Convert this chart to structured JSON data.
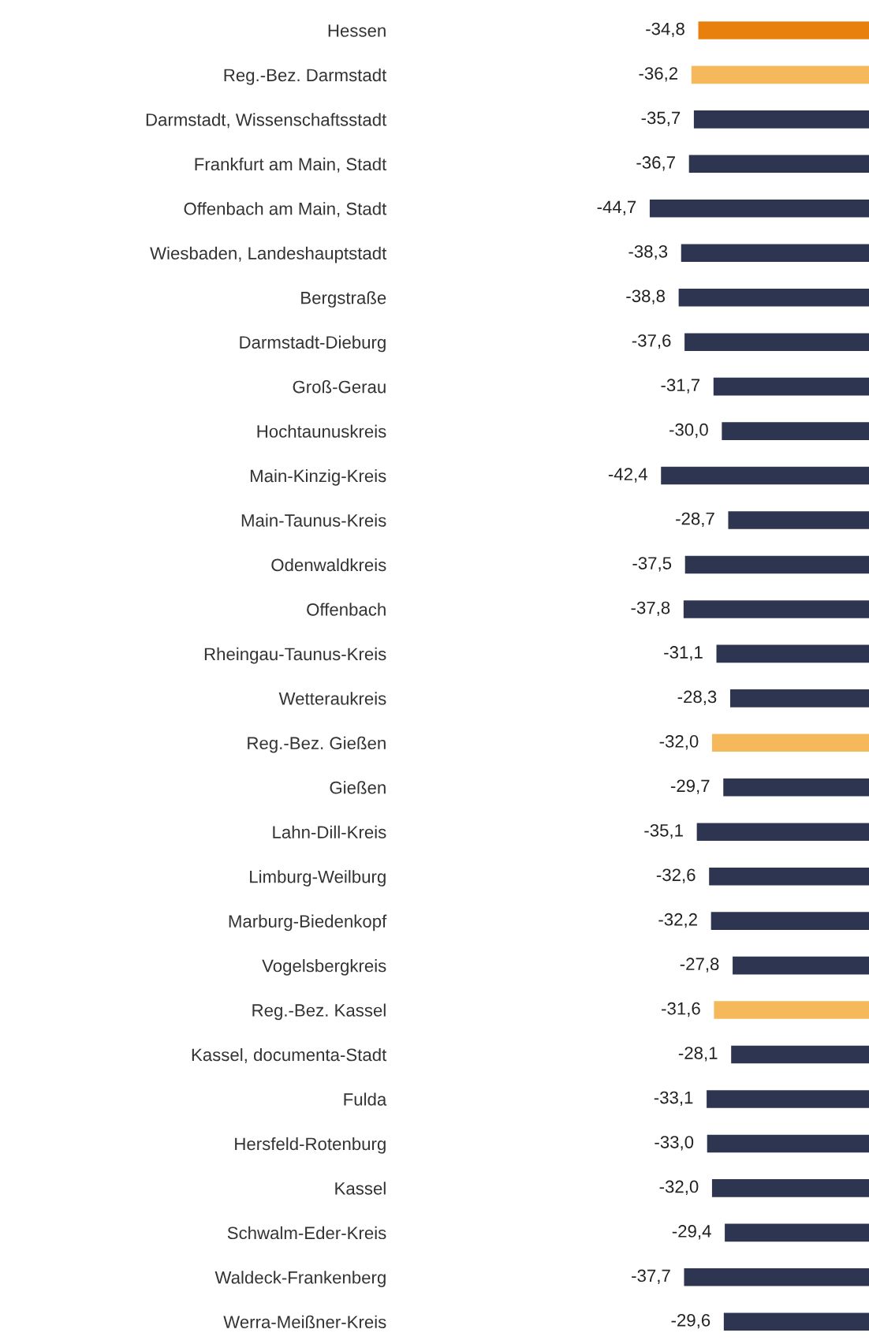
{
  "chart_data": {
    "type": "bar",
    "orientation": "horizontal",
    "value_labels": [
      "-34,8",
      "-36,2",
      "-35,7",
      "-36,7",
      "-44,7",
      "-38,3",
      "-38,8",
      "-37,6",
      "-31,7",
      "-30,0",
      "-42,4",
      "-28,7",
      "-37,5",
      "-37,8",
      "-31,1",
      "-28,3",
      "-32,0",
      "-29,7",
      "-35,1",
      "-32,6",
      "-32,2",
      "-27,8",
      "-31,6",
      "-28,1",
      "-33,1",
      "-33,0",
      "-32,0",
      "-29,4",
      "-37,7",
      "-29,6"
    ],
    "categories": [
      "Hessen",
      "Reg.-Bez. Darmstadt",
      "Darmstadt, Wissenschaftsstadt",
      "Frankfurt am Main, Stadt",
      "Offenbach am Main, Stadt",
      "Wiesbaden, Landeshauptstadt",
      "Bergstraße",
      "Darmstadt-Dieburg",
      "Groß-Gerau",
      "Hochtaunuskreis",
      "Main-Kinzig-Kreis",
      "Main-Taunus-Kreis",
      "Odenwaldkreis",
      "Offenbach",
      "Rheingau-Taunus-Kreis",
      "Wetteraukreis",
      "Reg.-Bez. Gießen",
      "Gießen",
      "Lahn-Dill-Kreis",
      "Limburg-Weilburg",
      "Marburg-Biedenkopf",
      "Vogelsbergkreis",
      "Reg.-Bez. Kassel",
      "Kassel, documenta-Stadt",
      "Fulda",
      "Hersfeld-Rotenburg",
      "Kassel",
      "Schwalm-Eder-Kreis",
      "Waldeck-Frankenberg",
      "Werra-Meißner-Kreis"
    ],
    "values": [
      -34.8,
      -36.2,
      -35.7,
      -36.7,
      -44.7,
      -38.3,
      -38.8,
      -37.6,
      -31.7,
      -30.0,
      -42.4,
      -28.7,
      -37.5,
      -37.8,
      -31.1,
      -28.3,
      -32.0,
      -29.7,
      -35.1,
      -32.6,
      -32.2,
      -27.8,
      -31.6,
      -28.1,
      -33.1,
      -33.0,
      -32.0,
      -29.4,
      -37.7,
      -29.6
    ],
    "colors": [
      "#e8800e",
      "#f5b95c",
      "#2e3550",
      "#2e3550",
      "#2e3550",
      "#2e3550",
      "#2e3550",
      "#2e3550",
      "#2e3550",
      "#2e3550",
      "#2e3550",
      "#2e3550",
      "#2e3550",
      "#2e3550",
      "#2e3550",
      "#2e3550",
      "#f5b95c",
      "#2e3550",
      "#2e3550",
      "#2e3550",
      "#2e3550",
      "#2e3550",
      "#f5b95c",
      "#2e3550",
      "#2e3550",
      "#2e3550",
      "#2e3550",
      "#2e3550",
      "#2e3550",
      "#2e3550"
    ],
    "grid": false,
    "legend": false
  }
}
